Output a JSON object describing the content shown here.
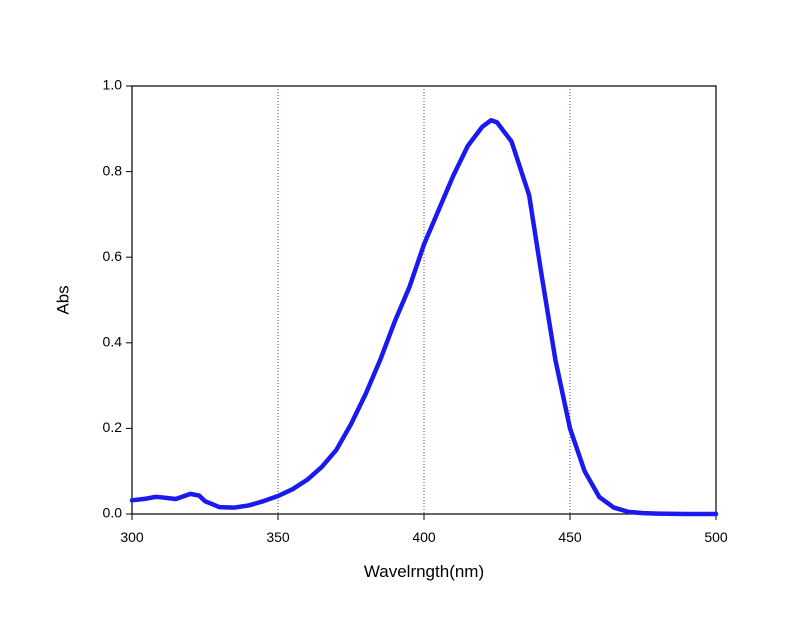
{
  "chart_data": {
    "type": "line",
    "x_label": "Wavelrngth(nm)",
    "y_label": "Abs",
    "x": [
      300,
      305,
      308,
      310,
      315,
      320,
      323,
      325,
      330,
      335,
      340,
      345,
      350,
      355,
      360,
      365,
      370,
      375,
      380,
      385,
      390,
      395,
      400,
      405,
      410,
      415,
      420,
      423,
      425,
      430,
      436,
      440,
      445,
      450,
      455,
      460,
      465,
      470,
      475,
      480,
      490,
      500
    ],
    "series": [
      {
        "color": "#1a1aee",
        "values": [
          0.032,
          0.036,
          0.04,
          0.039,
          0.035,
          0.047,
          0.043,
          0.03,
          0.016,
          0.015,
          0.02,
          0.03,
          0.042,
          0.058,
          0.08,
          0.11,
          0.15,
          0.21,
          0.28,
          0.36,
          0.45,
          0.53,
          0.63,
          0.71,
          0.79,
          0.86,
          0.905,
          0.92,
          0.915,
          0.87,
          0.745,
          0.57,
          0.36,
          0.2,
          0.1,
          0.04,
          0.015,
          0.005,
          0.002,
          0.001,
          0,
          0
        ]
      }
    ],
    "xlim": [
      300,
      500
    ],
    "xticks": [
      300,
      350,
      400,
      450,
      500
    ],
    "ylim": [
      0,
      1
    ],
    "yticks": [
      {
        "value": 0,
        "label": "0.0"
      },
      0.2,
      0.4,
      0.6,
      0.8,
      {
        "value": 1,
        "label": "1.0"
      }
    ],
    "x_grid": true,
    "grid_color": "#3a3ab0"
  }
}
